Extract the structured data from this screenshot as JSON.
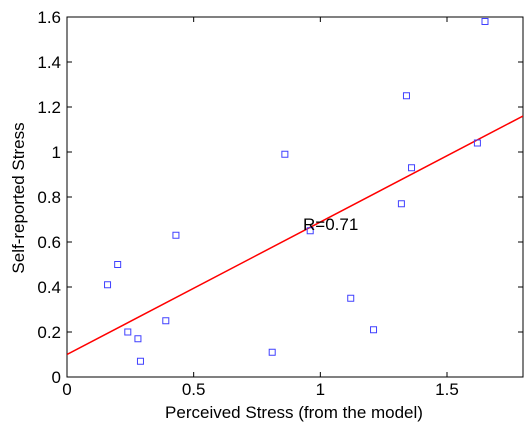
{
  "chart_data": {
    "type": "scatter",
    "xlabel": "Perceived Stress (from the model)",
    "ylabel": "Self-reported Stress",
    "xlim": [
      0,
      1.8
    ],
    "ylim": [
      0,
      1.6
    ],
    "xticks": [
      0,
      0.5,
      1,
      1.5
    ],
    "yticks": [
      0,
      0.2,
      0.4,
      0.6,
      0.8,
      1,
      1.2,
      1.4,
      1.6
    ],
    "grid": false,
    "points": [
      {
        "x": 0.16,
        "y": 0.41
      },
      {
        "x": 0.2,
        "y": 0.5
      },
      {
        "x": 0.24,
        "y": 0.2
      },
      {
        "x": 0.28,
        "y": 0.17
      },
      {
        "x": 0.29,
        "y": 0.07
      },
      {
        "x": 0.39,
        "y": 0.25
      },
      {
        "x": 0.43,
        "y": 0.63
      },
      {
        "x": 0.81,
        "y": 0.11
      },
      {
        "x": 0.86,
        "y": 0.99
      },
      {
        "x": 0.96,
        "y": 0.65
      },
      {
        "x": 1.12,
        "y": 0.35
      },
      {
        "x": 1.21,
        "y": 0.21
      },
      {
        "x": 1.32,
        "y": 0.77
      },
      {
        "x": 1.34,
        "y": 1.25
      },
      {
        "x": 1.36,
        "y": 0.93
      },
      {
        "x": 1.62,
        "y": 1.04
      },
      {
        "x": 1.65,
        "y": 1.58
      }
    ],
    "point_color": "#4040ff",
    "fit_line": {
      "x": [
        0,
        1.8
      ],
      "y": [
        0.1,
        1.16
      ],
      "color": "#ff0000"
    },
    "annotation": {
      "text": "R=0.71",
      "x": 0.9,
      "y": 0.68
    }
  }
}
